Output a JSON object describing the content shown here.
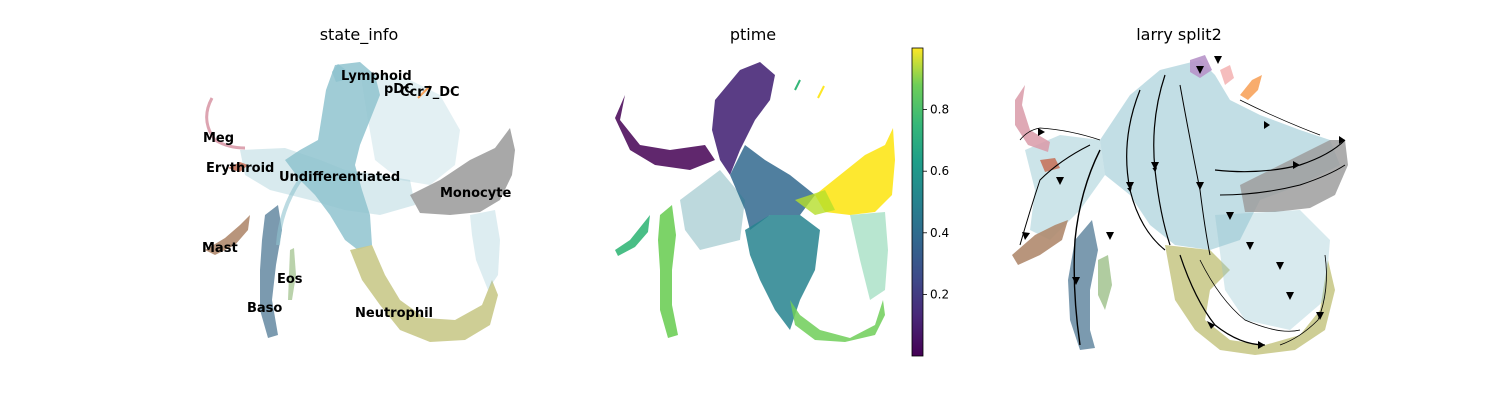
{
  "chart_data": [
    {
      "type": "scatter",
      "title": "state_info",
      "xlabel": "",
      "ylabel": "",
      "grid": false,
      "legend": "on data",
      "clusters": [
        {
          "name": "Lymphoid",
          "color": "#8fc3cf"
        },
        {
          "name": "pDC",
          "color": "#8fc3cf"
        },
        {
          "name": "Ccr7_DC",
          "color": "#f7a35c"
        },
        {
          "name": "Meg",
          "color": "#d99aa8"
        },
        {
          "name": "Erythroid",
          "color": "#c7745d"
        },
        {
          "name": "Undifferentiated",
          "color": "#8fc3cf"
        },
        {
          "name": "Monocyte",
          "color": "#9e9e9e"
        },
        {
          "name": "Mast",
          "color": "#b08a6e"
        },
        {
          "name": "Eos",
          "color": "#9cbf88"
        },
        {
          "name": "Baso",
          "color": "#6d8fa6"
        },
        {
          "name": "Neutrophil",
          "color": "#c9c98a"
        }
      ]
    },
    {
      "type": "scatter",
      "title": "ptime",
      "xlabel": "",
      "ylabel": "",
      "grid": false,
      "colorbar": {
        "colormap": "viridis",
        "range": [
          0.0,
          1.0
        ],
        "ticks": [
          0.2,
          0.4,
          0.6,
          0.8
        ],
        "tick_labels": [
          "0.2",
          "0.4",
          "0.6",
          "0.8"
        ]
      }
    },
    {
      "type": "scatter",
      "title": "larry split2",
      "xlabel": "",
      "ylabel": "",
      "grid": false,
      "overlay": "velocity streamlines with arrows"
    }
  ],
  "colors": {
    "undifferentiated": "#8fc3cf",
    "monocyte": "#9e9e9e",
    "neutrophil": "#c9c98a",
    "baso": "#6d8fa6",
    "mast": "#b08a6e",
    "meg": "#d99aa8",
    "erythroid": "#c7745d",
    "eos": "#9cbf88",
    "ccr7_dc": "#f7a35c",
    "lymphoid_top": "#b794c9",
    "pink": "#f4b6b6"
  }
}
